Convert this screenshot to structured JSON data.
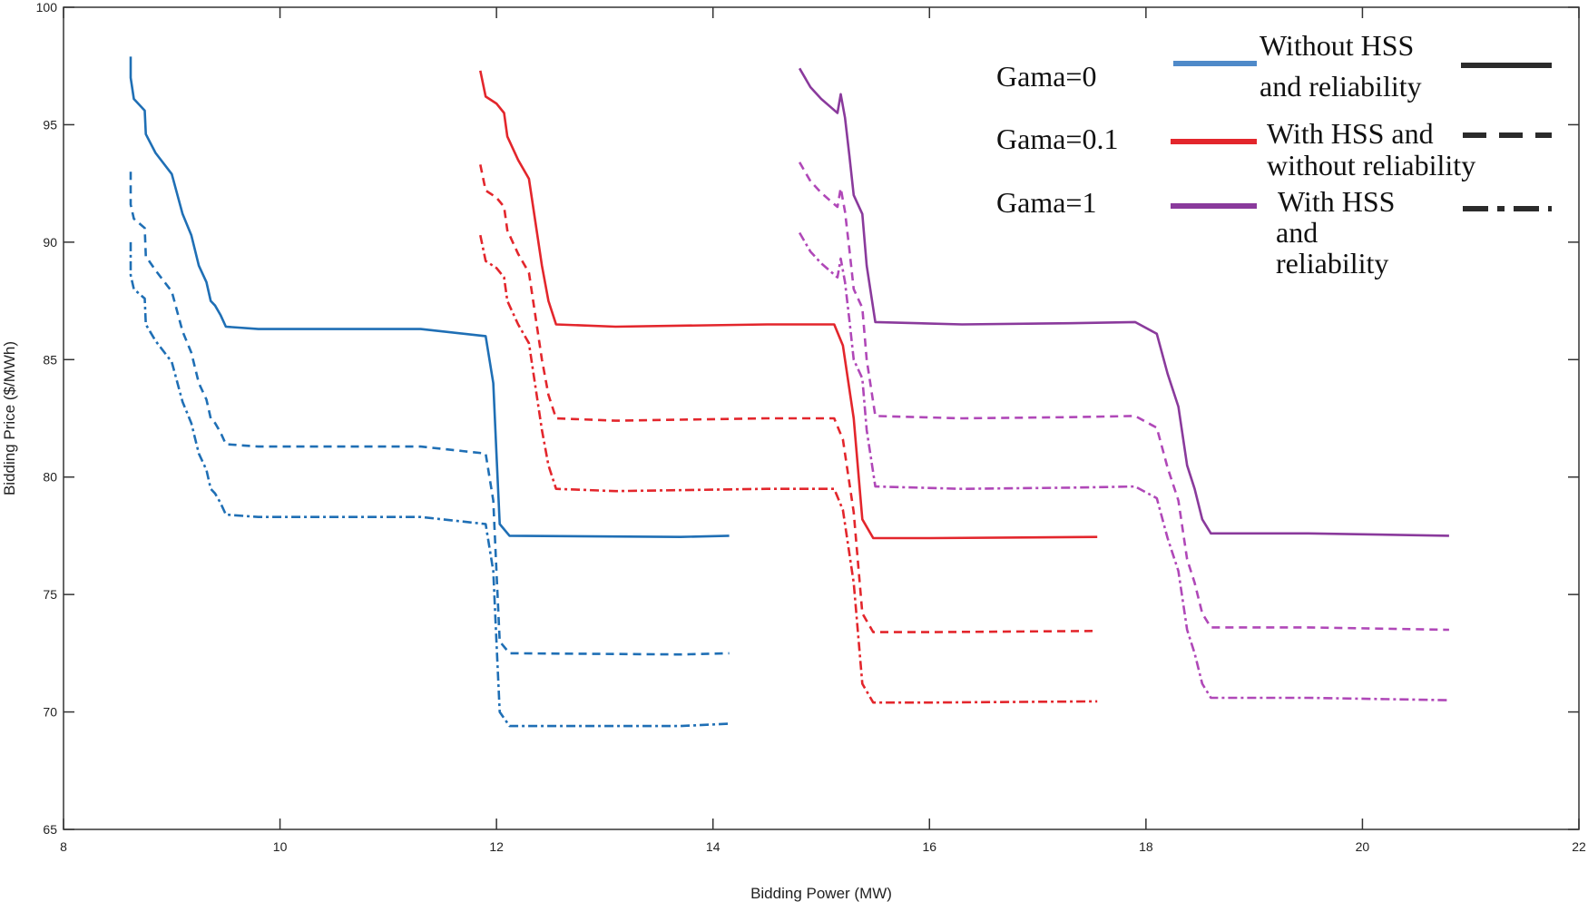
{
  "chart_data": {
    "type": "line",
    "title": "",
    "xlabel": "Bidding Power (MW)",
    "ylabel": "Bidding Price ($/MWh)",
    "xlim": [
      8,
      22
    ],
    "ylim": [
      65,
      100
    ],
    "xticks": [
      8,
      10,
      12,
      14,
      16,
      18,
      20,
      22
    ],
    "yticks": [
      65,
      70,
      75,
      80,
      85,
      90,
      95,
      100
    ],
    "colors": {
      "gama0": "#1f6fb5",
      "gama01": "#e3262c",
      "gama1": "#8a3a9c",
      "gama1_light": "#b048b8",
      "legend_gama0": "#4f8ac9",
      "legend_style": "#2b2b2b"
    },
    "legend": {
      "gama_labels": [
        "Gama=0",
        "Gama=0.1",
        "Gama=1"
      ],
      "style_labels": [
        [
          "Without HSS",
          "and reliability"
        ],
        [
          "With HSS and",
          "without reliability"
        ],
        [
          "With HSS",
          "and",
          "reliability"
        ]
      ]
    },
    "series": [
      {
        "name": "Gama=0, Without HSS and reliability",
        "color": "gama0",
        "dash": "solid",
        "points": [
          [
            8.62,
            97.9
          ],
          [
            8.62,
            97.0
          ],
          [
            8.65,
            96.1
          ],
          [
            8.75,
            95.6
          ],
          [
            8.76,
            94.6
          ],
          [
            8.85,
            93.8
          ],
          [
            9.0,
            92.9
          ],
          [
            9.1,
            91.2
          ],
          [
            9.18,
            90.3
          ],
          [
            9.25,
            89.0
          ],
          [
            9.32,
            88.3
          ],
          [
            9.36,
            87.5
          ],
          [
            9.4,
            87.3
          ],
          [
            9.45,
            86.9
          ],
          [
            9.5,
            86.4
          ],
          [
            9.8,
            86.3
          ],
          [
            11.3,
            86.3
          ],
          [
            11.9,
            86.0
          ],
          [
            11.97,
            84.0
          ],
          [
            12.0,
            81.0
          ],
          [
            12.03,
            78.0
          ],
          [
            12.12,
            77.5
          ],
          [
            13.7,
            77.45
          ],
          [
            14.15,
            77.5
          ]
        ]
      },
      {
        "name": "Gama=0, With HSS and without reliability",
        "color": "gama0",
        "dash": "dashed",
        "points": [
          [
            8.62,
            93.0
          ],
          [
            8.62,
            91.6
          ],
          [
            8.65,
            91.0
          ],
          [
            8.75,
            90.6
          ],
          [
            8.76,
            89.4
          ],
          [
            8.85,
            88.8
          ],
          [
            9.0,
            87.9
          ],
          [
            9.1,
            86.2
          ],
          [
            9.18,
            85.3
          ],
          [
            9.25,
            84.0
          ],
          [
            9.32,
            83.3
          ],
          [
            9.36,
            82.5
          ],
          [
            9.4,
            82.3
          ],
          [
            9.45,
            81.9
          ],
          [
            9.5,
            81.4
          ],
          [
            9.8,
            81.3
          ],
          [
            11.3,
            81.3
          ],
          [
            11.9,
            81.0
          ],
          [
            11.97,
            79.0
          ],
          [
            12.0,
            76.0
          ],
          [
            12.03,
            73.0
          ],
          [
            12.12,
            72.5
          ],
          [
            13.7,
            72.45
          ],
          [
            14.15,
            72.5
          ]
        ]
      },
      {
        "name": "Gama=0, With HSS and reliability",
        "color": "gama0",
        "dash": "dashdot",
        "points": [
          [
            8.62,
            90.0
          ],
          [
            8.62,
            88.6
          ],
          [
            8.65,
            88.0
          ],
          [
            8.75,
            87.6
          ],
          [
            8.76,
            86.5
          ],
          [
            8.85,
            85.8
          ],
          [
            9.0,
            84.9
          ],
          [
            9.1,
            83.2
          ],
          [
            9.18,
            82.3
          ],
          [
            9.25,
            81.0
          ],
          [
            9.32,
            80.3
          ],
          [
            9.36,
            79.5
          ],
          [
            9.4,
            79.3
          ],
          [
            9.45,
            78.9
          ],
          [
            9.5,
            78.4
          ],
          [
            9.8,
            78.3
          ],
          [
            11.3,
            78.3
          ],
          [
            11.9,
            78.0
          ],
          [
            11.97,
            76.0
          ],
          [
            12.0,
            73.0
          ],
          [
            12.03,
            70.0
          ],
          [
            12.12,
            69.4
          ],
          [
            13.7,
            69.4
          ],
          [
            14.15,
            69.5
          ]
        ]
      },
      {
        "name": "Gama=0.1, Without HSS and reliability",
        "color": "gama01",
        "dash": "solid",
        "points": [
          [
            11.85,
            97.3
          ],
          [
            11.9,
            96.2
          ],
          [
            12.0,
            95.9
          ],
          [
            12.07,
            95.5
          ],
          [
            12.1,
            94.5
          ],
          [
            12.2,
            93.5
          ],
          [
            12.3,
            92.7
          ],
          [
            12.42,
            89.0
          ],
          [
            12.48,
            87.5
          ],
          [
            12.55,
            86.5
          ],
          [
            13.1,
            86.4
          ],
          [
            14.5,
            86.5
          ],
          [
            15.12,
            86.5
          ],
          [
            15.2,
            85.6
          ],
          [
            15.3,
            82.5
          ],
          [
            15.38,
            78.2
          ],
          [
            15.48,
            77.4
          ],
          [
            16.0,
            77.4
          ],
          [
            17.55,
            77.45
          ]
        ]
      },
      {
        "name": "Gama=0.1, With HSS and without reliability",
        "color": "gama01",
        "dash": "dashed",
        "points": [
          [
            11.85,
            93.3
          ],
          [
            11.9,
            92.2
          ],
          [
            12.0,
            91.9
          ],
          [
            12.07,
            91.5
          ],
          [
            12.1,
            90.5
          ],
          [
            12.2,
            89.5
          ],
          [
            12.3,
            88.7
          ],
          [
            12.42,
            85.0
          ],
          [
            12.48,
            83.5
          ],
          [
            12.55,
            82.5
          ],
          [
            13.1,
            82.4
          ],
          [
            14.5,
            82.5
          ],
          [
            15.12,
            82.5
          ],
          [
            15.2,
            81.6
          ],
          [
            15.3,
            78.5
          ],
          [
            15.38,
            74.2
          ],
          [
            15.48,
            73.4
          ],
          [
            16.0,
            73.4
          ],
          [
            17.55,
            73.45
          ]
        ]
      },
      {
        "name": "Gama=0.1, With HSS and reliability",
        "color": "gama01",
        "dash": "dashdot",
        "points": [
          [
            11.85,
            90.3
          ],
          [
            11.9,
            89.2
          ],
          [
            12.0,
            88.9
          ],
          [
            12.07,
            88.5
          ],
          [
            12.1,
            87.5
          ],
          [
            12.2,
            86.5
          ],
          [
            12.3,
            85.7
          ],
          [
            12.42,
            82.0
          ],
          [
            12.48,
            80.5
          ],
          [
            12.55,
            79.5
          ],
          [
            13.1,
            79.4
          ],
          [
            14.5,
            79.5
          ],
          [
            15.12,
            79.5
          ],
          [
            15.2,
            78.6
          ],
          [
            15.3,
            75.5
          ],
          [
            15.38,
            71.2
          ],
          [
            15.48,
            70.4
          ],
          [
            16.0,
            70.4
          ],
          [
            17.55,
            70.45
          ]
        ]
      },
      {
        "name": "Gama=1, Without HSS and reliability",
        "color": "gama1",
        "dash": "solid",
        "points": [
          [
            14.8,
            97.4
          ],
          [
            14.9,
            96.6
          ],
          [
            15.0,
            96.1
          ],
          [
            15.1,
            95.7
          ],
          [
            15.15,
            95.5
          ],
          [
            15.18,
            96.3
          ],
          [
            15.22,
            95.3
          ],
          [
            15.26,
            93.7
          ],
          [
            15.3,
            92.0
          ],
          [
            15.38,
            91.2
          ],
          [
            15.42,
            89.0
          ],
          [
            15.5,
            86.6
          ],
          [
            16.3,
            86.5
          ],
          [
            17.3,
            86.55
          ],
          [
            17.9,
            86.6
          ],
          [
            18.1,
            86.1
          ],
          [
            18.2,
            84.4
          ],
          [
            18.3,
            83.0
          ],
          [
            18.38,
            80.5
          ],
          [
            18.45,
            79.5
          ],
          [
            18.52,
            78.2
          ],
          [
            18.6,
            77.6
          ],
          [
            19.5,
            77.6
          ],
          [
            20.8,
            77.5
          ]
        ]
      },
      {
        "name": "Gama=1, With HSS and without reliability",
        "color": "gama1_light",
        "dash": "dashed",
        "points": [
          [
            14.8,
            93.4
          ],
          [
            14.9,
            92.6
          ],
          [
            15.0,
            92.1
          ],
          [
            15.1,
            91.7
          ],
          [
            15.15,
            91.5
          ],
          [
            15.18,
            92.3
          ],
          [
            15.22,
            91.3
          ],
          [
            15.26,
            89.7
          ],
          [
            15.3,
            88.0
          ],
          [
            15.38,
            87.2
          ],
          [
            15.42,
            85.0
          ],
          [
            15.5,
            82.6
          ],
          [
            16.3,
            82.5
          ],
          [
            17.3,
            82.55
          ],
          [
            17.9,
            82.6
          ],
          [
            18.1,
            82.1
          ],
          [
            18.2,
            80.4
          ],
          [
            18.3,
            79.0
          ],
          [
            18.38,
            76.5
          ],
          [
            18.45,
            75.5
          ],
          [
            18.52,
            74.2
          ],
          [
            18.6,
            73.6
          ],
          [
            19.5,
            73.6
          ],
          [
            20.8,
            73.5
          ]
        ]
      },
      {
        "name": "Gama=1, With HSS and reliability",
        "color": "gama1_light",
        "dash": "dashdot",
        "points": [
          [
            14.8,
            90.4
          ],
          [
            14.9,
            89.6
          ],
          [
            15.0,
            89.1
          ],
          [
            15.1,
            88.7
          ],
          [
            15.15,
            88.5
          ],
          [
            15.18,
            89.3
          ],
          [
            15.22,
            88.3
          ],
          [
            15.26,
            86.7
          ],
          [
            15.3,
            85.0
          ],
          [
            15.38,
            84.2
          ],
          [
            15.42,
            82.0
          ],
          [
            15.5,
            79.6
          ],
          [
            16.3,
            79.5
          ],
          [
            17.3,
            79.55
          ],
          [
            17.9,
            79.6
          ],
          [
            18.1,
            79.1
          ],
          [
            18.2,
            77.4
          ],
          [
            18.3,
            76.0
          ],
          [
            18.38,
            73.5
          ],
          [
            18.45,
            72.5
          ],
          [
            18.52,
            71.2
          ],
          [
            18.6,
            70.6
          ],
          [
            19.5,
            70.6
          ],
          [
            20.8,
            70.5
          ]
        ]
      }
    ]
  }
}
